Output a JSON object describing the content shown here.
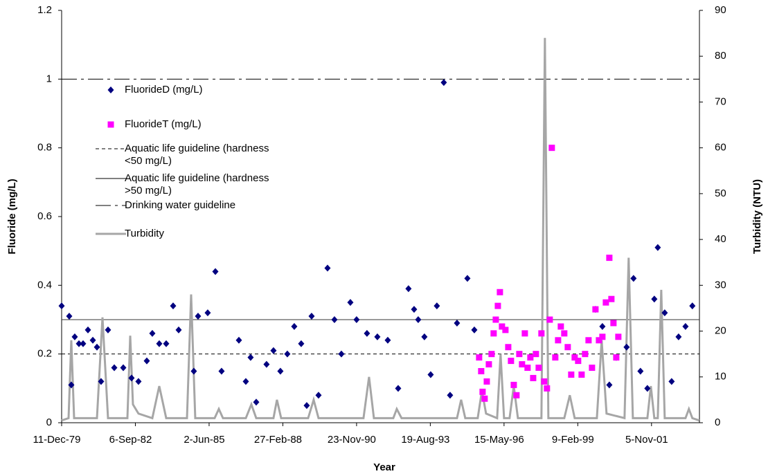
{
  "chart_data": {
    "type": "scatter",
    "x_label": "Year",
    "y_label": "Fluoride (mg/L)",
    "y2_label": "Turbidity (NTU)",
    "xlim": [
      29200,
      37850
    ],
    "xticks": [
      {
        "value": 29200,
        "label": "11-Dec-79"
      },
      {
        "value": 30200,
        "label": "6-Sep-82"
      },
      {
        "value": 31200,
        "label": "2-Jun-85"
      },
      {
        "value": 32200,
        "label": "27-Feb-88"
      },
      {
        "value": 33200,
        "label": "23-Nov-90"
      },
      {
        "value": 34200,
        "label": "19-Aug-93"
      },
      {
        "value": 35200,
        "label": "15-May-96"
      },
      {
        "value": 36200,
        "label": "9-Feb-99"
      },
      {
        "value": 37200,
        "label": "5-Nov-01"
      }
    ],
    "ylim": [
      0,
      1.2
    ],
    "yticks": [
      0,
      0.2,
      0.4,
      0.6,
      0.8,
      1,
      1.2
    ],
    "y2lim": [
      0,
      90
    ],
    "y2ticks": [
      0,
      10,
      20,
      30,
      40,
      50,
      60,
      70,
      80,
      90
    ],
    "series": [
      {
        "name": "FluorideD (mg/L)",
        "type": "scatter",
        "marker": "diamond",
        "color": "#000080",
        "x": [
          29200,
          29303,
          29331,
          29378,
          29435,
          29491,
          29557,
          29623,
          29679,
          29735,
          29829,
          29914,
          30036,
          30148,
          30242,
          30355,
          30430,
          30524,
          30618,
          30712,
          30787,
          30993,
          31050,
          31181,
          31285,
          31369,
          31604,
          31698,
          31763,
          31839,
          31979,
          32073,
          32167,
          32261,
          32355,
          32449,
          32524,
          32590,
          32684,
          32806,
          32900,
          32994,
          33116,
          33200,
          33341,
          33482,
          33623,
          33764,
          33904,
          33980,
          34036,
          34120,
          34205,
          34289,
          34383,
          34468,
          34562,
          34703,
          34797,
          36440,
          36534,
          36628,
          36722,
          36862,
          36956,
          37050,
          37144,
          37238,
          37285,
          37379,
          37473,
          37567,
          37661,
          37754
        ],
        "values": [
          0.34,
          0.31,
          0.11,
          0.25,
          0.23,
          0.23,
          0.27,
          0.24,
          0.22,
          0.12,
          0.27,
          0.16,
          0.16,
          0.13,
          0.12,
          0.18,
          0.26,
          0.23,
          0.23,
          0.34,
          0.27,
          0.15,
          0.31,
          0.32,
          0.44,
          0.15,
          0.24,
          0.12,
          0.19,
          0.06,
          0.17,
          0.21,
          0.15,
          0.2,
          0.28,
          0.23,
          0.05,
          0.31,
          0.08,
          0.45,
          0.3,
          0.2,
          0.35,
          0.3,
          0.26,
          0.25,
          0.24,
          0.1,
          0.39,
          0.33,
          0.3,
          0.25,
          0.14,
          0.34,
          0.99,
          0.08,
          0.29,
          0.42,
          0.27,
          0.33,
          0.28,
          0.11,
          0.19,
          0.22,
          0.42,
          0.15,
          0.1,
          0.36,
          0.51,
          0.32,
          0.12,
          0.25,
          0.28,
          0.34
        ]
      },
      {
        "name": "FluorideT (mg/L)",
        "type": "scatter",
        "marker": "square",
        "color": "#ff00ff",
        "x": [
          34862,
          34890,
          34909,
          34937,
          34966,
          34994,
          35031,
          35059,
          35088,
          35116,
          35144,
          35172,
          35219,
          35257,
          35294,
          35332,
          35369,
          35407,
          35444,
          35482,
          35519,
          35557,
          35595,
          35632,
          35670,
          35707,
          35745,
          35782,
          35820,
          35848,
          35895,
          35933,
          35970,
          36017,
          36064,
          36111,
          36158,
          36205,
          36252,
          36299,
          36346,
          36393,
          36440,
          36487,
          36534,
          36581,
          36628,
          36656,
          36684,
          36722,
          36750
        ],
        "values": [
          0.19,
          0.15,
          0.09,
          0.07,
          0.12,
          0.17,
          0.2,
          0.26,
          0.3,
          0.34,
          0.38,
          0.28,
          0.27,
          0.22,
          0.18,
          0.11,
          0.08,
          0.2,
          0.17,
          0.26,
          0.16,
          0.19,
          0.13,
          0.2,
          0.16,
          0.26,
          0.12,
          0.1,
          0.3,
          0.8,
          0.19,
          0.24,
          0.28,
          0.26,
          0.22,
          0.14,
          0.19,
          0.18,
          0.14,
          0.2,
          0.24,
          0.16,
          0.33,
          0.24,
          0.25,
          0.35,
          0.48,
          0.36,
          0.29,
          0.19,
          0.25
        ]
      },
      {
        "name": "Turbidity",
        "type": "line",
        "axis": "y2",
        "color": "#a6a6a6",
        "x": [
          29200,
          29294,
          29331,
          29369,
          29679,
          29754,
          29829,
          30092,
          30130,
          30167,
          30242,
          30430,
          30524,
          30618,
          30900,
          30956,
          31012,
          31275,
          31332,
          31388,
          31698,
          31773,
          31839,
          32073,
          32120,
          32177,
          32543,
          32618,
          32684,
          33294,
          33369,
          33435,
          33698,
          33745,
          33810,
          34562,
          34618,
          34674,
          34843,
          34900,
          34956,
          35106,
          35153,
          35200,
          35275,
          35332,
          35388,
          35707,
          35754,
          35801,
          36017,
          36092,
          36158,
          36459,
          36524,
          36590,
          36834,
          36890,
          36947,
          37144,
          37191,
          37238,
          37285,
          37332,
          37379,
          37661,
          37707,
          37754,
          37848
        ],
        "values": [
          0.5,
          1,
          18,
          1,
          1,
          23,
          1,
          1,
          19,
          4,
          2,
          1,
          8,
          1,
          1,
          28,
          1,
          1,
          3,
          1,
          1,
          4,
          1,
          1,
          5,
          1,
          1,
          5,
          1,
          1,
          10,
          1,
          1,
          3,
          1,
          1,
          5,
          1,
          1,
          7,
          2,
          1,
          15,
          1,
          1,
          8,
          1,
          1,
          84,
          1,
          1,
          6,
          1,
          1,
          18,
          2,
          1,
          36,
          1,
          1,
          8,
          1,
          1,
          29,
          1,
          1,
          3,
          1,
          0.5
        ]
      }
    ],
    "hlines": [
      {
        "name": "Aquatic life guideline (hardness <50 mg/L)",
        "value": 0.2,
        "style": "dashed"
      },
      {
        "name": "Aquatic life guideline (hardness >50 mg/L)",
        "value": 0.3,
        "style": "solid"
      },
      {
        "name": "Drinking water guideline",
        "value": 1,
        "style": "dash-dot"
      }
    ]
  }
}
